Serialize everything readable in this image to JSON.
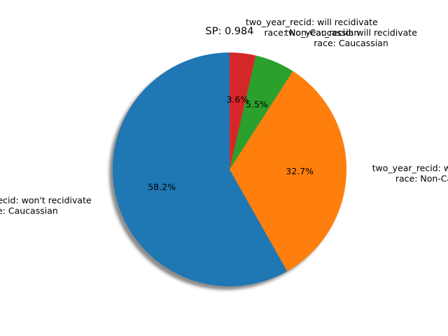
{
  "chart_data": {
    "type": "pie",
    "title": "SP: 0.984",
    "start_angle_deg": 90,
    "direction": "counterclockwise",
    "shadow": true,
    "slices": [
      {
        "label_lines": [
          "two_year_recid: won't recidivate",
          "race: Caucassian"
        ],
        "value": 58.2,
        "pct_label": "58.2%",
        "color": "#1f77b4"
      },
      {
        "label_lines": [
          "two_year_recid: won't recidivate",
          "race: Non-Caucassian"
        ],
        "value": 32.7,
        "pct_label": "32.7%",
        "color": "#ff7f0e"
      },
      {
        "label_lines": [
          "two_year_recid: will recidivate",
          "race: Caucassian"
        ],
        "value": 5.5,
        "pct_label": "5.5%",
        "color": "#2ca02c"
      },
      {
        "label_lines": [
          "two_year_recid: will recidivate",
          "race: Non-Caucassian"
        ],
        "value": 3.6,
        "pct_label": "3.6%",
        "color": "#d62728"
      }
    ]
  }
}
